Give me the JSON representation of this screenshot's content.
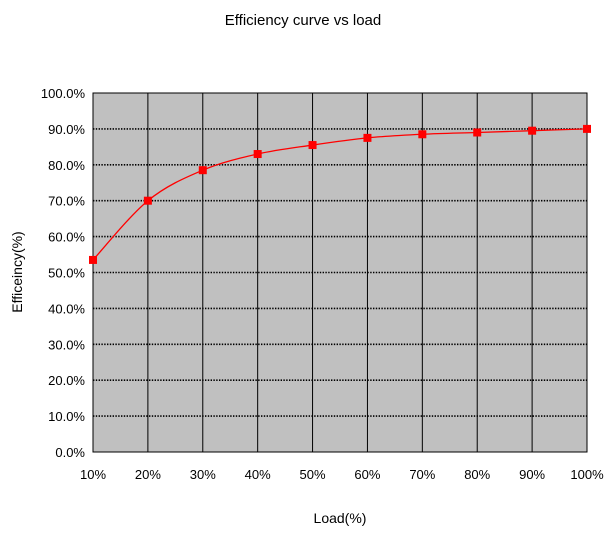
{
  "chart_data": {
    "type": "line",
    "title": "Efficiency curve vs load",
    "xlabel": "Load(%)",
    "ylabel": "Efficeincy(%)",
    "x": [
      10,
      20,
      30,
      40,
      50,
      60,
      70,
      80,
      90,
      100
    ],
    "x_tick_labels": [
      "10%",
      "20%",
      "30%",
      "40%",
      "50%",
      "60%",
      "70%",
      "80%",
      "90%",
      "100%"
    ],
    "y_tick_labels": [
      "0.0%",
      "10.0%",
      "20.0%",
      "30.0%",
      "40.0%",
      "50.0%",
      "60.0%",
      "70.0%",
      "80.0%",
      "90.0%",
      "100.0%"
    ],
    "y_ticks": [
      0,
      10,
      20,
      30,
      40,
      50,
      60,
      70,
      80,
      90,
      100
    ],
    "xlim": [
      10,
      100
    ],
    "ylim": [
      0,
      100
    ],
    "grid": true,
    "legend": "none",
    "series": [
      {
        "values": [
          53.5,
          70.0,
          78.5,
          83.0,
          85.5,
          87.5,
          88.5,
          89.0,
          89.5,
          90.0
        ]
      }
    ],
    "colors": {
      "plot_background": "#c0c0c0",
      "series": "#ff0000",
      "grid": "#000000"
    }
  }
}
